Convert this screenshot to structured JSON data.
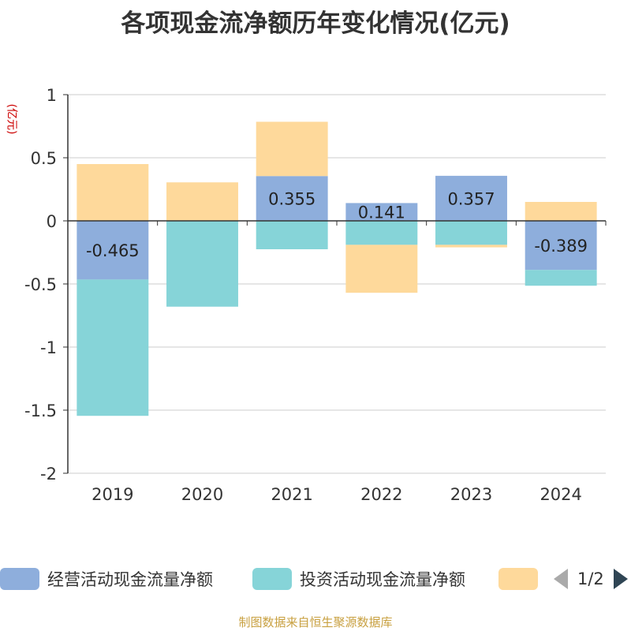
{
  "chart_data": {
    "type": "bar",
    "stacked": true,
    "title": "各项现金流净额历年变化情况(亿元)",
    "ylabel": "(亿元)",
    "ylim": [
      -2,
      1
    ],
    "yticks": [
      1,
      0.5,
      0,
      -0.5,
      -1,
      -1.5,
      -2
    ],
    "ytick_labels": [
      "1",
      "0.5",
      "0",
      "-0.5",
      "-1",
      "-1.5",
      "-2"
    ],
    "categories": [
      "2019",
      "2020",
      "2021",
      "2022",
      "2023",
      "2024"
    ],
    "series": [
      {
        "name": "经营活动现金流量净额",
        "color": "#8eaedc",
        "values": [
          -0.465,
          0.0,
          0.355,
          0.141,
          0.357,
          -0.389
        ],
        "labels": [
          "-0.465",
          "",
          "0.355",
          "0.141",
          "0.357",
          "-0.389"
        ]
      },
      {
        "name": "投资活动现金流量净额",
        "color": "#86d4d8",
        "values": [
          -1.08,
          -0.68,
          -0.225,
          -0.19,
          -0.19,
          -0.125
        ]
      },
      {
        "name": "",
        "color": "#fed99b",
        "values": [
          0.45,
          0.305,
          0.43,
          -0.38,
          -0.02,
          0.15
        ]
      }
    ],
    "legend_position": "bottom",
    "grid": true
  },
  "legend": {
    "items": [
      {
        "label": "经营活动现金流量净额",
        "color": "#8eaedc"
      },
      {
        "label": "投资活动现金流量净额",
        "color": "#86d4d8"
      },
      {
        "label": "",
        "color": "#fed99b"
      }
    ],
    "page": "1/2"
  },
  "source": "制图数据来自恒生聚源数据库"
}
